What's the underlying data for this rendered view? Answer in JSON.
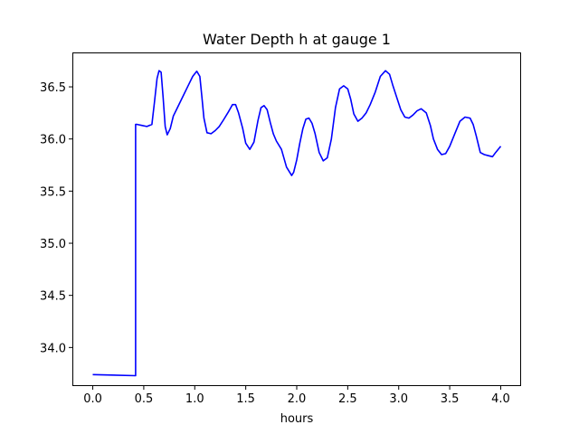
{
  "chart_data": {
    "type": "line",
    "title": "Water Depth h at gauge 1",
    "xlabel": "hours",
    "ylabel": "",
    "xlim": [
      -0.2,
      4.2
    ],
    "ylim": [
      33.63,
      36.83
    ],
    "xticks": [
      0.0,
      0.5,
      1.0,
      1.5,
      2.0,
      2.5,
      3.0,
      3.5,
      4.0
    ],
    "xtick_labels": [
      "0.0",
      "0.5",
      "1.0",
      "1.5",
      "2.0",
      "2.5",
      "3.0",
      "3.5",
      "4.0"
    ],
    "yticks": [
      34.0,
      34.5,
      35.0,
      35.5,
      36.0,
      36.5
    ],
    "ytick_labels": [
      "34.0",
      "34.5",
      "35.0",
      "35.5",
      "36.0",
      "36.5"
    ],
    "grid": false,
    "legend": "none",
    "series": [
      {
        "color": "#0000ff",
        "x": [
          0.0,
          0.42,
          0.42,
          0.435,
          0.48,
          0.53,
          0.58,
          0.605,
          0.63,
          0.65,
          0.67,
          0.69,
          0.71,
          0.73,
          0.76,
          0.79,
          0.83,
          0.88,
          0.94,
          0.98,
          1.02,
          1.05,
          1.07,
          1.09,
          1.12,
          1.16,
          1.2,
          1.24,
          1.28,
          1.33,
          1.37,
          1.4,
          1.43,
          1.47,
          1.5,
          1.54,
          1.58,
          1.62,
          1.65,
          1.68,
          1.71,
          1.74,
          1.77,
          1.8,
          1.85,
          1.9,
          1.95,
          1.97,
          2.0,
          2.03,
          2.06,
          2.09,
          2.12,
          2.15,
          2.18,
          2.22,
          2.26,
          2.3,
          2.34,
          2.38,
          2.42,
          2.46,
          2.5,
          2.53,
          2.56,
          2.6,
          2.64,
          2.68,
          2.72,
          2.77,
          2.82,
          2.87,
          2.91,
          2.94,
          2.98,
          3.02,
          3.06,
          3.1,
          3.14,
          3.18,
          3.22,
          3.27,
          3.31,
          3.34,
          3.38,
          3.42,
          3.46,
          3.5,
          3.55,
          3.6,
          3.65,
          3.7,
          3.73,
          3.76,
          3.8,
          3.84,
          3.88,
          3.92,
          3.95,
          4.0
        ],
        "y": [
          33.74,
          33.73,
          36.14,
          36.14,
          36.13,
          36.12,
          36.14,
          36.35,
          36.58,
          36.655,
          36.64,
          36.4,
          36.12,
          36.04,
          36.1,
          36.22,
          36.3,
          36.4,
          36.52,
          36.6,
          36.65,
          36.6,
          36.4,
          36.2,
          36.06,
          36.05,
          36.08,
          36.12,
          36.18,
          36.26,
          36.33,
          36.33,
          36.25,
          36.1,
          35.96,
          35.9,
          35.97,
          36.18,
          36.3,
          36.32,
          36.28,
          36.16,
          36.05,
          35.98,
          35.9,
          35.73,
          35.65,
          35.68,
          35.8,
          35.96,
          36.1,
          36.19,
          36.2,
          36.15,
          36.05,
          35.87,
          35.79,
          35.82,
          36.0,
          36.3,
          36.48,
          36.51,
          36.48,
          36.38,
          36.24,
          36.17,
          36.2,
          36.25,
          36.33,
          36.45,
          36.6,
          36.655,
          36.62,
          36.52,
          36.4,
          36.28,
          36.21,
          36.2,
          36.23,
          36.27,
          36.29,
          36.25,
          36.13,
          36.0,
          35.9,
          35.85,
          35.86,
          35.93,
          36.05,
          36.17,
          36.21,
          36.2,
          36.14,
          36.03,
          35.87,
          35.85,
          35.84,
          35.83,
          35.87,
          35.93
        ]
      }
    ]
  }
}
